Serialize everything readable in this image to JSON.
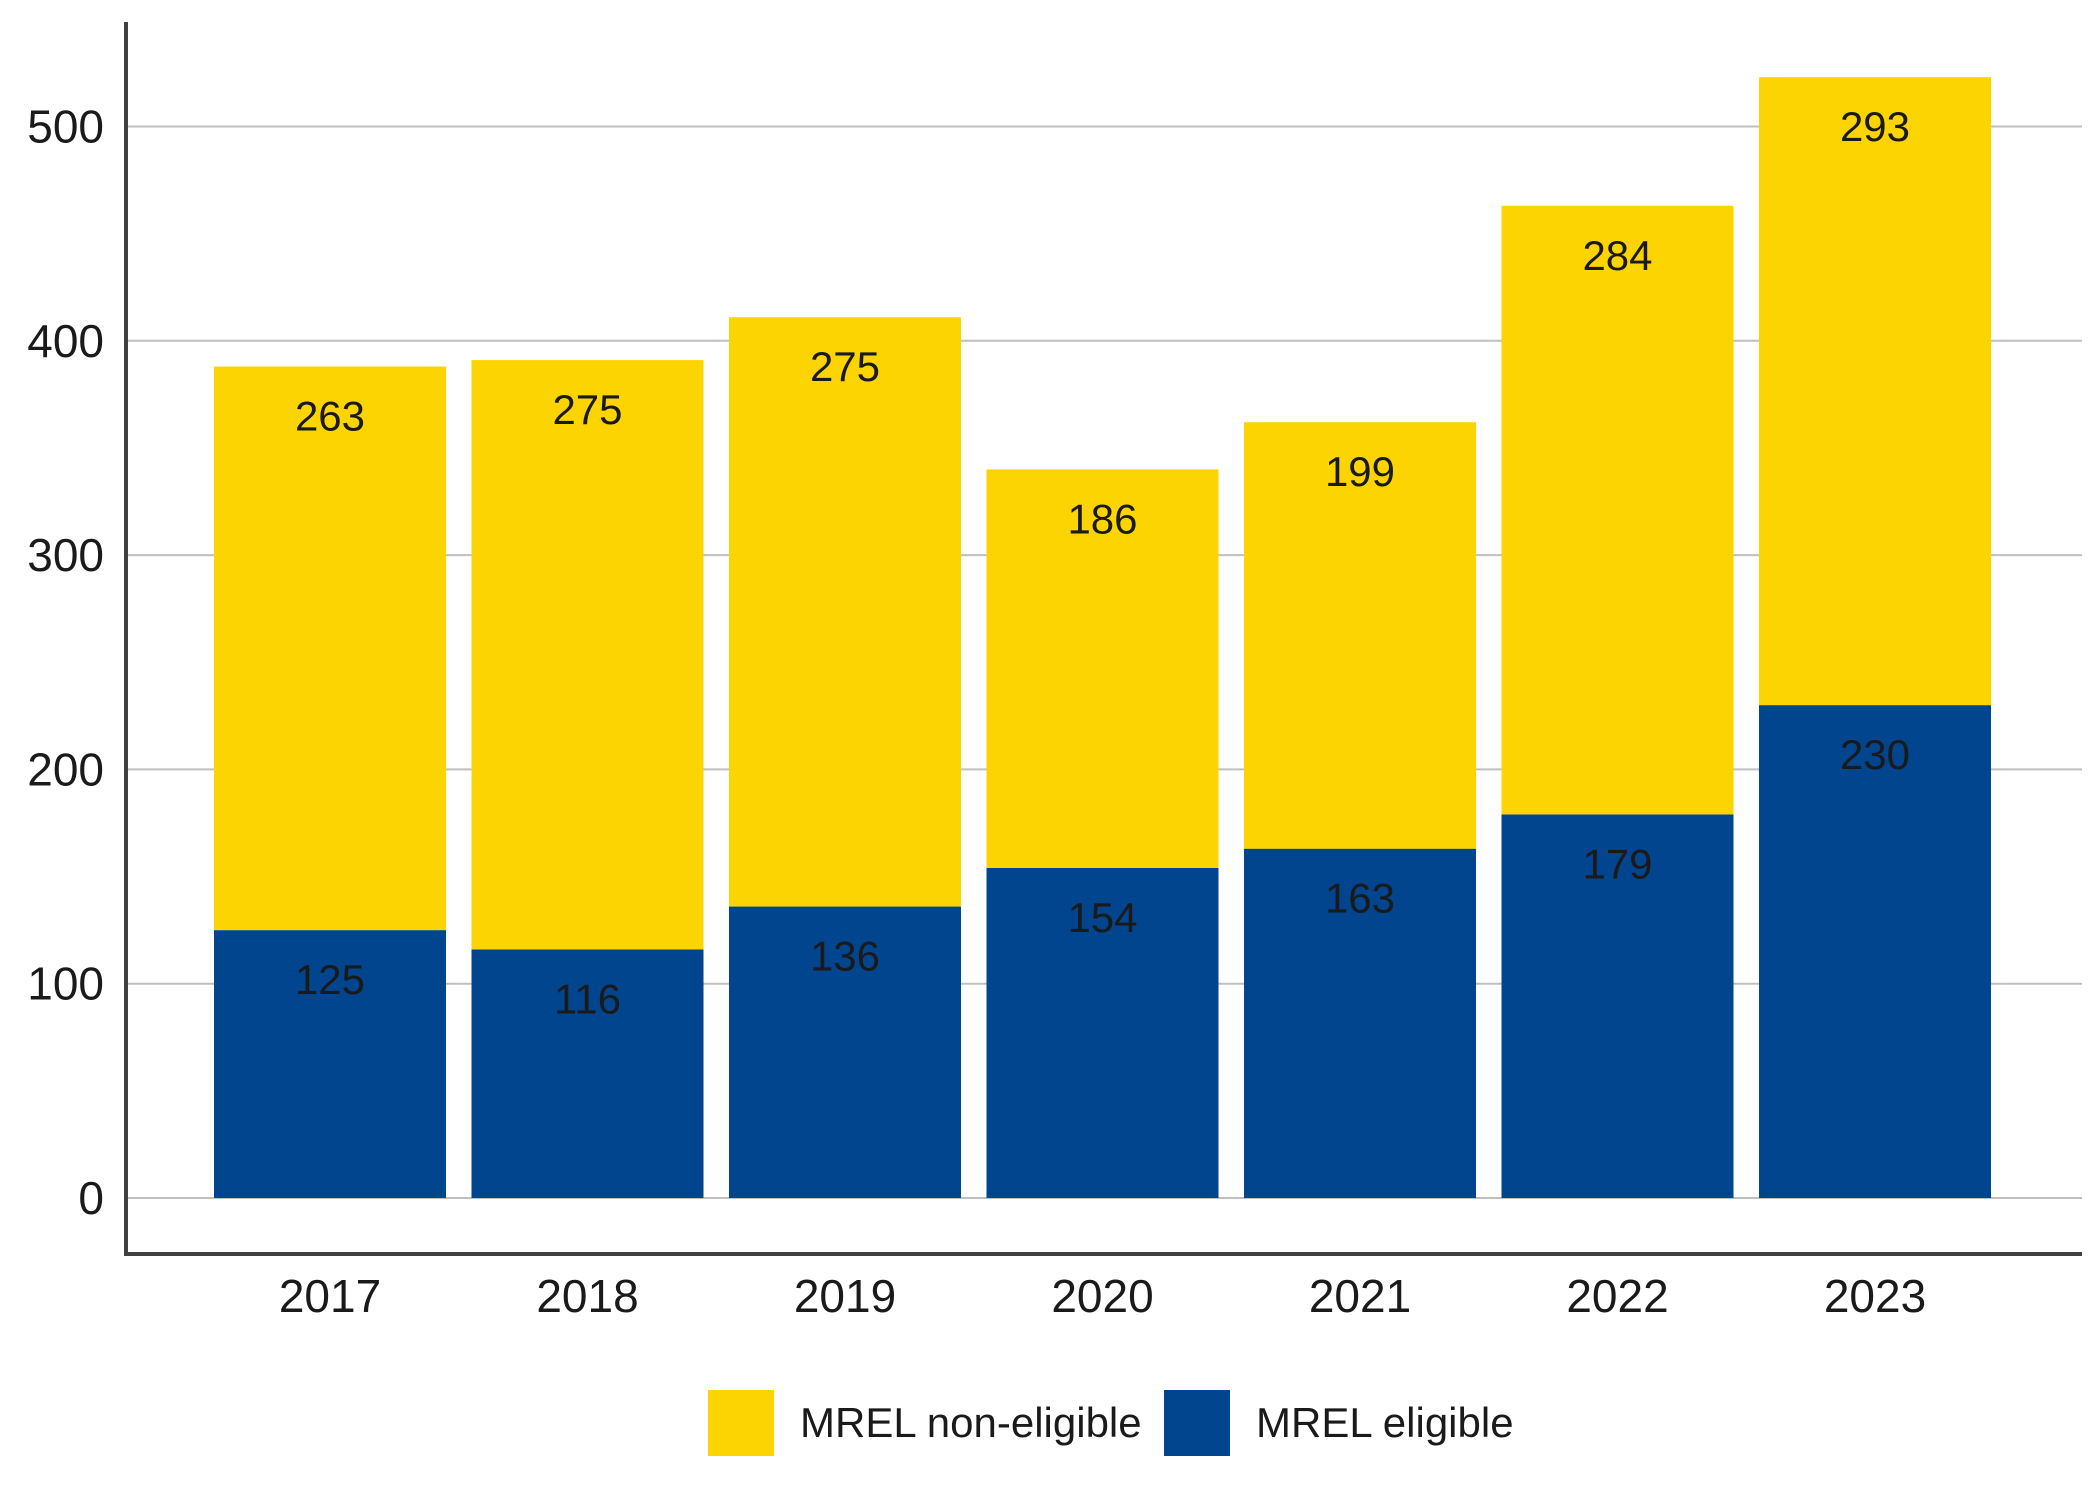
{
  "chart_data": {
    "type": "bar",
    "stacked": true,
    "categories": [
      "2017",
      "2018",
      "2019",
      "2020",
      "2021",
      "2022",
      "2023"
    ],
    "series": [
      {
        "name": "MREL eligible",
        "color": "#02458F",
        "values": [
          125,
          116,
          136,
          154,
          163,
          179,
          230
        ]
      },
      {
        "name": "MREL non-eligible",
        "color": "#FCD401",
        "values": [
          263,
          275,
          275,
          186,
          199,
          284,
          293
        ]
      }
    ],
    "ylim": [
      0,
      550
    ],
    "yticks": [
      0,
      100,
      200,
      300,
      400,
      500
    ],
    "grid": true,
    "legend_position": "bottom",
    "legend_order": [
      "MREL non-eligible",
      "MREL eligible"
    ],
    "colors": {
      "gridline": "#BFBFBF",
      "axis": "#404040"
    }
  }
}
